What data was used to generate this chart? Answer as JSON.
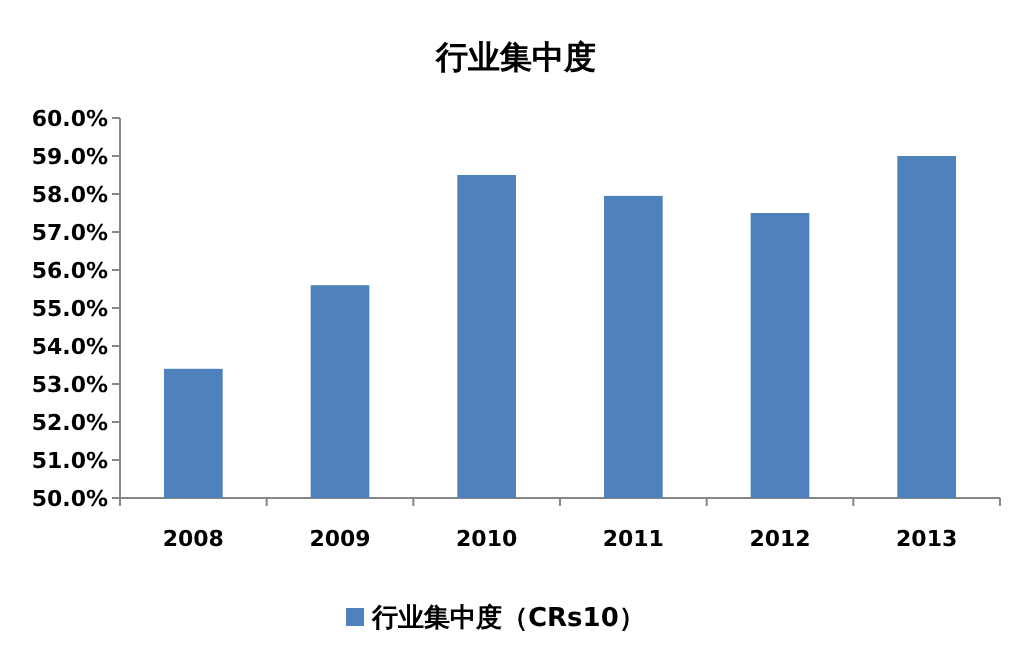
{
  "chart_data": {
    "type": "bar",
    "title": "行业集中度",
    "categories": [
      "2008",
      "2009",
      "2010",
      "2011",
      "2012",
      "2013"
    ],
    "series": [
      {
        "name": "行业集中度（CRs10）",
        "color": "#4f81bd",
        "values": [
          53.4,
          55.6,
          58.5,
          57.95,
          57.5,
          59.0
        ]
      }
    ],
    "ylim": [
      50,
      60
    ],
    "yticks": [
      {
        "value": 50,
        "label": "50.0%"
      },
      {
        "value": 51,
        "label": "51.0%"
      },
      {
        "value": 52,
        "label": "52.0%"
      },
      {
        "value": 53,
        "label": "53.0%"
      },
      {
        "value": 54,
        "label": "54.0%"
      },
      {
        "value": 55,
        "label": "55.0%"
      },
      {
        "value": 56,
        "label": "56.0%"
      },
      {
        "value": 57,
        "label": "57.0%"
      },
      {
        "value": 58,
        "label": "58.0%"
      },
      {
        "value": 59,
        "label": "59.0%"
      },
      {
        "value": 60,
        "label": "60.0%"
      }
    ],
    "legend": "bottom"
  }
}
